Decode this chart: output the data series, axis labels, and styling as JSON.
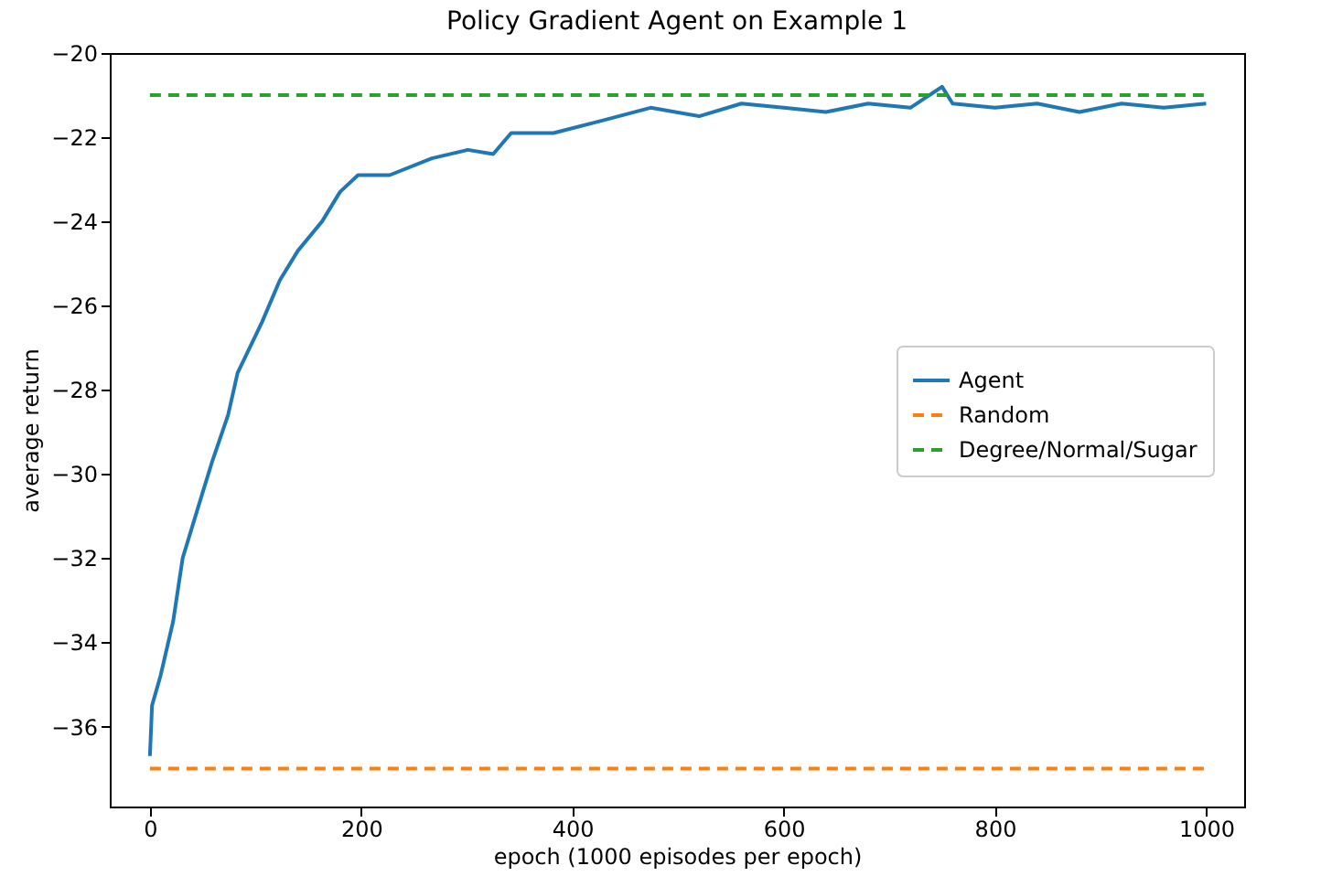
{
  "chart_data": {
    "type": "line",
    "title": "Policy Gradient Agent on Example 1",
    "xlabel": "epoch (1000 episodes per epoch)",
    "ylabel": "average return",
    "xlim": [
      -38,
      1036
    ],
    "ylim": [
      -37.9,
      -20
    ],
    "xticks": [
      0,
      200,
      400,
      600,
      800,
      1000
    ],
    "yticks": [
      -36,
      -34,
      -32,
      -30,
      -28,
      -26,
      -24,
      -22,
      -20
    ],
    "grid": false,
    "legend": "right",
    "marker": "none",
    "series": [
      {
        "name": "Agent",
        "color": "#1f77b4",
        "line_style": "solid",
        "x": [
          0,
          2,
          10,
          22,
          31,
          48,
          59,
          74,
          83,
          106,
          123,
          140,
          163,
          180,
          197,
          227,
          267,
          301,
          325,
          342,
          382,
          429,
          474,
          520,
          560,
          600,
          640,
          680,
          720,
          750,
          760,
          800,
          840,
          880,
          920,
          960,
          1000
        ],
        "values": [
          -36.7,
          -35.5,
          -34.8,
          -33.5,
          -32.0,
          -30.6,
          -29.7,
          -28.6,
          -27.6,
          -26.4,
          -25.4,
          -24.7,
          -24.0,
          -23.3,
          -22.9,
          -22.9,
          -22.5,
          -22.3,
          -22.4,
          -21.9,
          -21.9,
          -21.6,
          -21.3,
          -21.5,
          -21.2,
          -21.3,
          -21.4,
          -21.2,
          -21.3,
          -20.8,
          -21.2,
          -21.3,
          -21.2,
          -21.4,
          -21.2,
          -21.3,
          -21.2
        ]
      },
      {
        "name": "Random",
        "color": "#ff7f0e",
        "line_style": "dashed",
        "x": [
          0,
          1000
        ],
        "values": [
          -37,
          -37
        ]
      },
      {
        "name": "Degree/Normal/Sugar",
        "color": "#2ca02c",
        "line_style": "dashed",
        "x": [
          0,
          1000
        ],
        "values": [
          -21,
          -21
        ]
      }
    ]
  }
}
